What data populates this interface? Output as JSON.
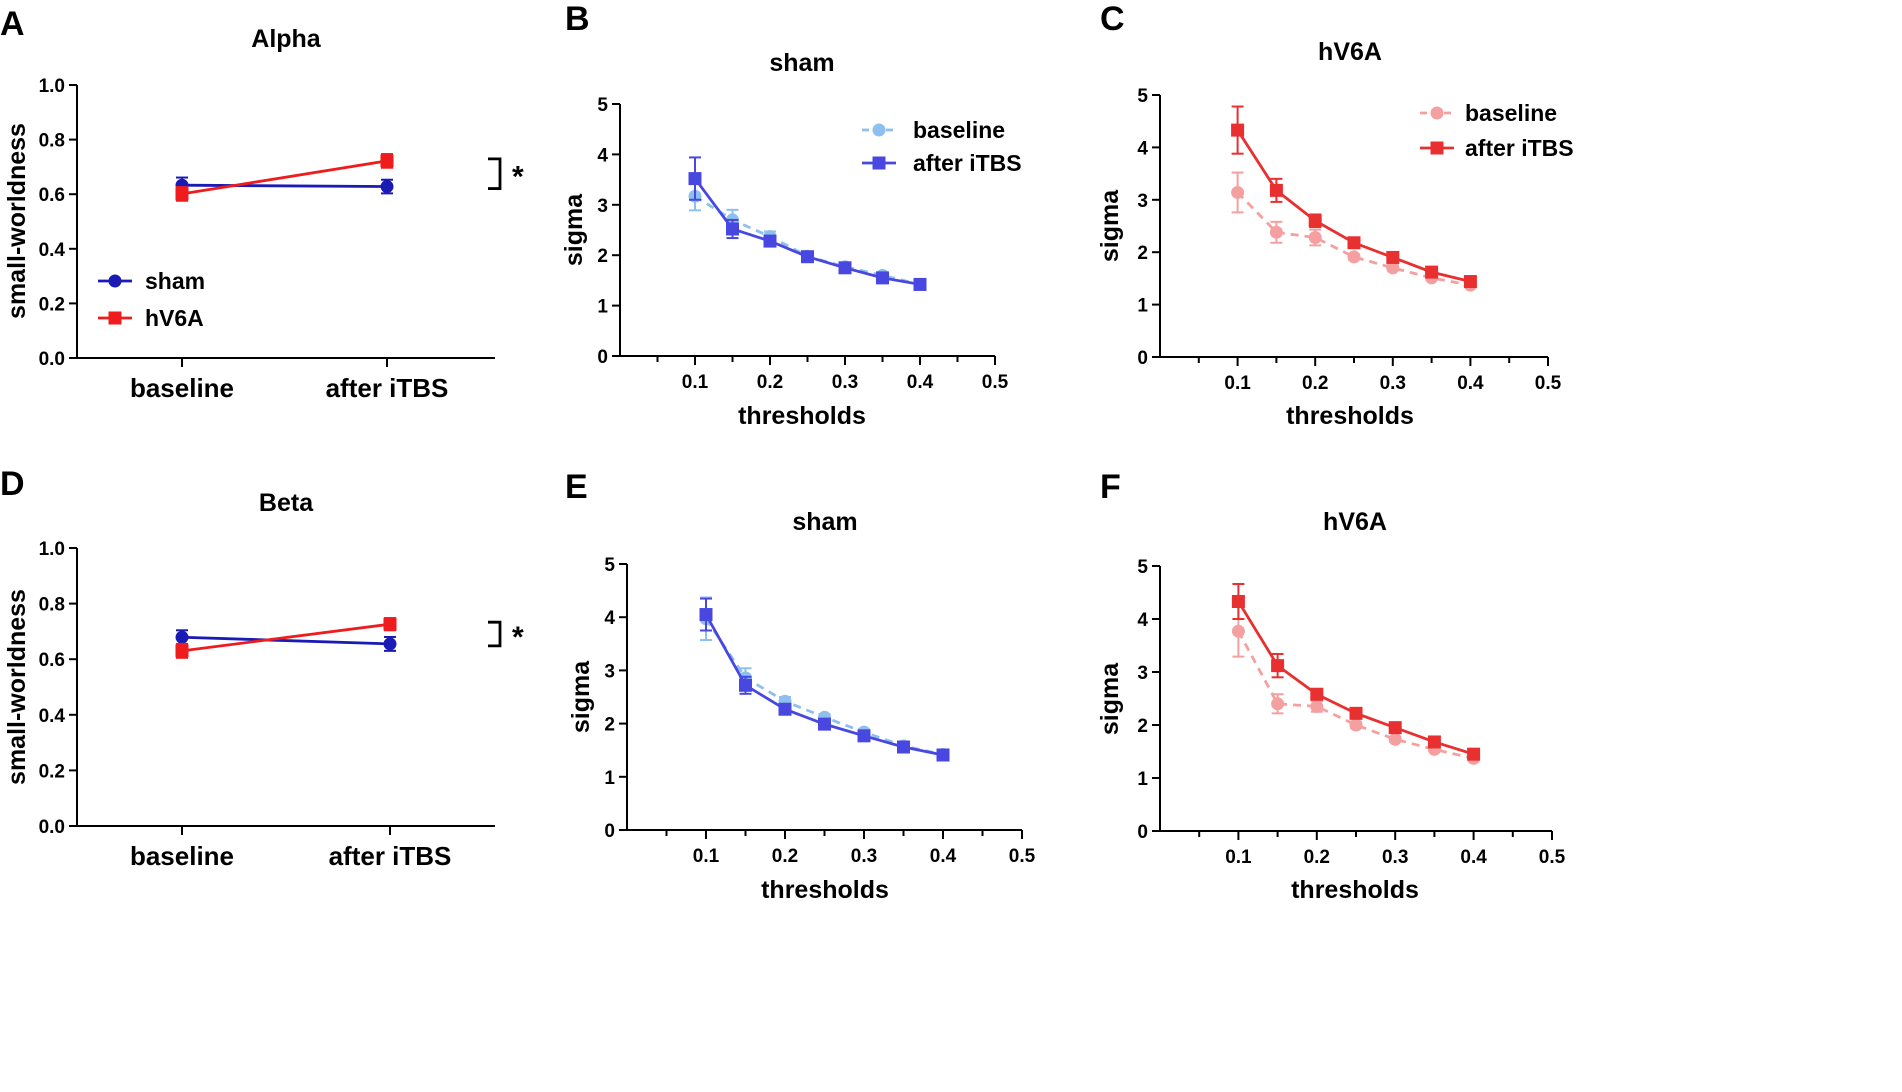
{
  "chart_data": [
    {
      "id": "A",
      "type": "line",
      "panel_letter": "A",
      "title": "Alpha",
      "xlabel": "",
      "ylabel": "small-worldness",
      "categories": [
        "baseline",
        "after iTBS"
      ],
      "ylim": [
        0,
        1.0
      ],
      "yticks": [
        "0.0",
        "0.2",
        "0.4",
        "0.6",
        "0.8",
        "1.0"
      ],
      "series": [
        {
          "name": "sham",
          "color": "#1a1ab4",
          "marker": "circle",
          "dashed": false,
          "values": [
            0.633,
            0.628
          ],
          "errors": [
            0.028,
            0.025
          ]
        },
        {
          "name": "hV6A",
          "color": "#ee1c1c",
          "marker": "square",
          "dashed": false,
          "values": [
            0.601,
            0.722
          ],
          "errors": [
            0.025,
            0.025
          ]
        }
      ],
      "annotation": "*",
      "legend": "bottom-left"
    },
    {
      "id": "B",
      "type": "line",
      "panel_letter": "B",
      "title": "sham",
      "xlabel": "thresholds",
      "ylabel": "sigma",
      "xlim": [
        0,
        0.5
      ],
      "ylim": [
        0,
        5
      ],
      "xticks": [
        "0.1",
        "0.2",
        "0.3",
        "0.4",
        "0.5"
      ],
      "yticks": [
        "0",
        "1",
        "2",
        "3",
        "4",
        "5"
      ],
      "x": [
        0.1,
        0.15,
        0.2,
        0.25,
        0.3,
        0.35,
        0.4
      ],
      "series": [
        {
          "name": "baseline",
          "color": "#8dc0ee",
          "marker": "circle",
          "dashed": true,
          "values": [
            3.17,
            2.7,
            2.37,
            1.98,
            1.77,
            1.6,
            1.42
          ],
          "errors": [
            0.28,
            0.2,
            0.1,
            0.05,
            0.05,
            0.04,
            0.04
          ]
        },
        {
          "name": "after iTBS",
          "color": "#4848e0",
          "marker": "square",
          "dashed": false,
          "values": [
            3.52,
            2.52,
            2.28,
            1.97,
            1.75,
            1.55,
            1.42
          ],
          "errors": [
            0.42,
            0.18,
            0.1,
            0.05,
            0.05,
            0.04,
            0.04
          ]
        }
      ],
      "legend": "top-right"
    },
    {
      "id": "C",
      "type": "line",
      "panel_letter": "C",
      "title": "hV6A",
      "xlabel": "thresholds",
      "ylabel": "sigma",
      "xlim": [
        0,
        0.5
      ],
      "ylim": [
        0,
        5
      ],
      "xticks": [
        "0.1",
        "0.2",
        "0.3",
        "0.4",
        "0.5"
      ],
      "yticks": [
        "0",
        "1",
        "2",
        "3",
        "4",
        "5"
      ],
      "x": [
        0.1,
        0.15,
        0.2,
        0.25,
        0.3,
        0.35,
        0.4
      ],
      "series": [
        {
          "name": "baseline",
          "color": "#f5a0a0",
          "marker": "circle",
          "dashed": true,
          "values": [
            3.14,
            2.38,
            2.28,
            1.91,
            1.7,
            1.51,
            1.37
          ],
          "errors": [
            0.38,
            0.2,
            0.15,
            0.05,
            0.05,
            0.04,
            0.04
          ]
        },
        {
          "name": "after iTBS",
          "color": "#e83030",
          "marker": "square",
          "dashed": false,
          "values": [
            4.33,
            3.18,
            2.6,
            2.18,
            1.9,
            1.62,
            1.44
          ],
          "errors": [
            0.45,
            0.22,
            0.12,
            0.06,
            0.05,
            0.04,
            0.04
          ]
        }
      ],
      "legend": "top-right"
    },
    {
      "id": "D",
      "type": "line",
      "panel_letter": "D",
      "title": "Beta",
      "xlabel": "",
      "ylabel": "small-worldness",
      "categories": [
        "baseline",
        "after iTBS"
      ],
      "ylim": [
        0,
        1.0
      ],
      "yticks": [
        "0.0",
        "0.2",
        "0.4",
        "0.6",
        "0.8",
        "1.0"
      ],
      "series": [
        {
          "name": "sham",
          "color": "#1a1ab4",
          "marker": "circle",
          "dashed": false,
          "values": [
            0.679,
            0.655
          ],
          "errors": [
            0.025,
            0.025
          ]
        },
        {
          "name": "hV6A",
          "color": "#ee1c1c",
          "marker": "square",
          "dashed": false,
          "values": [
            0.63,
            0.726
          ],
          "errors": [
            0.025,
            0.022
          ]
        }
      ],
      "annotation": "*",
      "legend": "none"
    },
    {
      "id": "E",
      "type": "line",
      "panel_letter": "E",
      "title": "sham",
      "xlabel": "thresholds",
      "ylabel": "sigma",
      "xlim": [
        0,
        0.5
      ],
      "ylim": [
        0,
        5
      ],
      "xticks": [
        "0.1",
        "0.2",
        "0.3",
        "0.4",
        "0.5"
      ],
      "yticks": [
        "0",
        "1",
        "2",
        "3",
        "4",
        "5"
      ],
      "x": [
        0.1,
        0.15,
        0.2,
        0.25,
        0.3,
        0.35,
        0.4
      ],
      "series": [
        {
          "name": "baseline",
          "color": "#8dc0ee",
          "marker": "circle",
          "dashed": true,
          "values": [
            3.97,
            2.86,
            2.42,
            2.12,
            1.84,
            1.58,
            1.42
          ],
          "errors": [
            0.4,
            0.18,
            0.08,
            0.06,
            0.05,
            0.04,
            0.04
          ]
        },
        {
          "name": "after iTBS",
          "color": "#4848e0",
          "marker": "square",
          "dashed": false,
          "values": [
            4.05,
            2.72,
            2.27,
            1.99,
            1.77,
            1.56,
            1.41
          ],
          "errors": [
            0.3,
            0.16,
            0.08,
            0.06,
            0.05,
            0.04,
            0.04
          ]
        }
      ],
      "legend": "none"
    },
    {
      "id": "F",
      "type": "line",
      "panel_letter": "F",
      "title": "hV6A",
      "xlabel": "thresholds",
      "ylabel": "sigma",
      "xlim": [
        0,
        0.5
      ],
      "ylim": [
        0,
        5
      ],
      "xticks": [
        "0.1",
        "0.2",
        "0.3",
        "0.4",
        "0.5"
      ],
      "yticks": [
        "0",
        "1",
        "2",
        "3",
        "4",
        "5"
      ],
      "x": [
        0.1,
        0.15,
        0.2,
        0.25,
        0.3,
        0.35,
        0.4
      ],
      "series": [
        {
          "name": "baseline",
          "color": "#f5a0a0",
          "marker": "circle",
          "dashed": true,
          "values": [
            3.77,
            2.4,
            2.35,
            2.0,
            1.73,
            1.54,
            1.37
          ],
          "errors": [
            0.48,
            0.18,
            0.1,
            0.06,
            0.05,
            0.04,
            0.04
          ]
        },
        {
          "name": "after iTBS",
          "color": "#e83030",
          "marker": "square",
          "dashed": false,
          "values": [
            4.33,
            3.12,
            2.58,
            2.22,
            1.95,
            1.68,
            1.45
          ],
          "errors": [
            0.33,
            0.22,
            0.1,
            0.06,
            0.05,
            0.04,
            0.04
          ]
        }
      ],
      "legend": "none"
    }
  ]
}
